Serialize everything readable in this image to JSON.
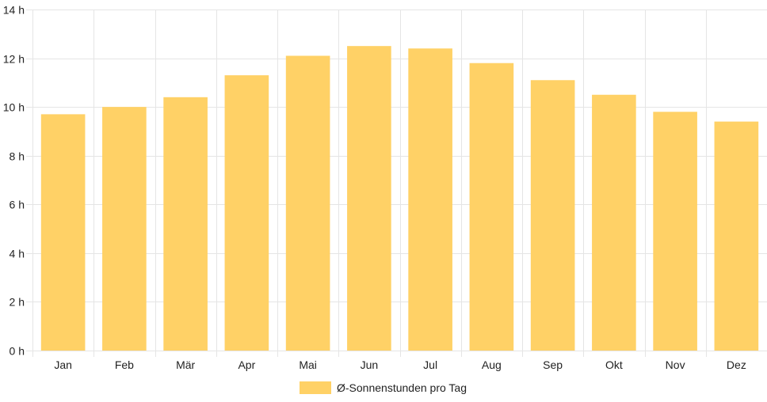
{
  "chart_data": {
    "type": "bar",
    "categories": [
      "Jan",
      "Feb",
      "Mär",
      "Apr",
      "Mai",
      "Jun",
      "Jul",
      "Aug",
      "Sep",
      "Okt",
      "Nov",
      "Dez"
    ],
    "series": [
      {
        "name": "Ø-Sonnenstunden pro Tag",
        "values": [
          9.7,
          10.0,
          10.4,
          11.3,
          12.1,
          12.5,
          12.4,
          11.8,
          11.1,
          10.5,
          9.8,
          9.4
        ]
      }
    ],
    "yticks": [
      "0 h",
      "2 h",
      "4 h",
      "6 h",
      "8 h",
      "10 h",
      "12 h",
      "14 h"
    ],
    "ylim": [
      0,
      14
    ],
    "grid": true,
    "legend_position": "bottom",
    "bar_color": "#FFD166",
    "grid_color": "#E5E5E5"
  }
}
